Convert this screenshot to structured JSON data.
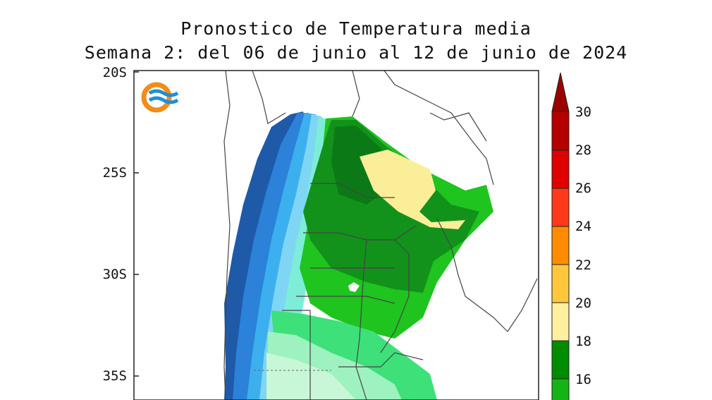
{
  "map": {
    "title": "Pronostico de Temperatura media",
    "subtitle": "Semana 2: del 06 de junio al 12 de junio de 2024",
    "lat_labels": [
      "20S",
      "25S",
      "30S",
      "35S"
    ],
    "colorbar": {
      "levels": [
        "30",
        "28",
        "26",
        "24",
        "22",
        "20",
        "18",
        "16"
      ],
      "colors": [
        "#b40000",
        "#e00000",
        "#ff3a1a",
        "#ff8c00",
        "#ffc83c",
        "#fff0a0",
        "#008c00",
        "#14b414",
        "#2ddc2d",
        "#9b0000"
      ]
    },
    "logo": "ocean-wave-logo",
    "palette": {
      "dark_green": "#12921a",
      "darker_green": "#0b7a16",
      "green": "#1fc41f",
      "light_green": "#3ee07a",
      "mint": "#8ef2b8",
      "pale_mint": "#c8f7d8",
      "pale_yellow": "#fbee98",
      "light_blue": "#7fd0f2",
      "blue": "#29a0e6",
      "dark_blue": "#1e5aa8",
      "cyan": "#5fe0e8"
    }
  }
}
